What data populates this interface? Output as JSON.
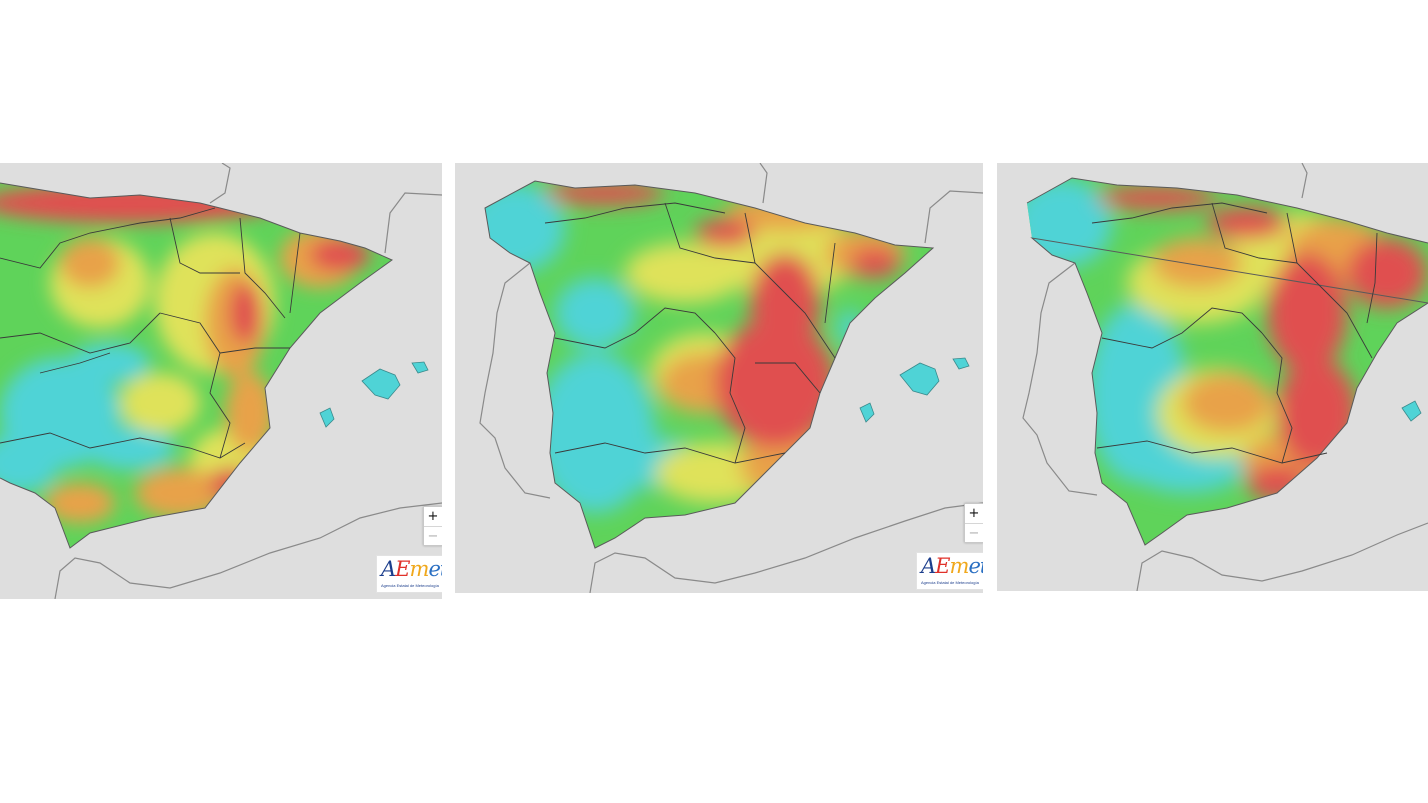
{
  "maps": [
    {
      "id": "map-1",
      "zoom": {
        "in_label": "+",
        "out_label": "−"
      },
      "logo": {
        "wordmark": "AEmet",
        "tagline": "Agencia Estatal de Meteorología"
      }
    },
    {
      "id": "map-2",
      "zoom": {
        "in_label": "+",
        "out_label": "−"
      },
      "logo": {
        "wordmark": "AEmet",
        "tagline": "Agencia Estatal de Meteorología"
      }
    },
    {
      "id": "map-3"
    }
  ],
  "colors": {
    "background": "#dedede",
    "coast": "#8a8a8a",
    "border": "#3a3a3a",
    "cyan": "#4fd3d6",
    "green": "#5fd35a",
    "yellow": "#dfe25a",
    "orange": "#e8a24a",
    "red": "#e05050"
  }
}
